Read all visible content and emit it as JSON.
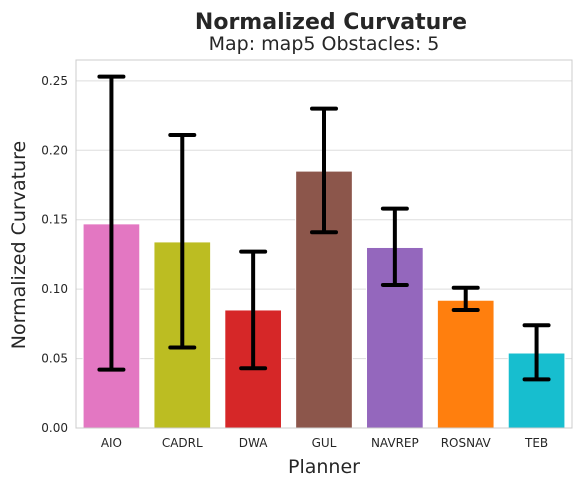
{
  "chart_data": {
    "type": "bar",
    "suptitle": "Normalized Curvature",
    "title": "Map: map5 Obstacles: 5",
    "xlabel": "Planner",
    "ylabel": "Normalized Curvature",
    "ylim": [
      0,
      0.265
    ],
    "yticks": [
      "0.00",
      "0.05",
      "0.10",
      "0.15",
      "0.20",
      "0.25"
    ],
    "grid": true,
    "categories": [
      "AIO",
      "CADRL",
      "DWA",
      "GUL",
      "NAVREP",
      "ROSNAV",
      "TEB"
    ],
    "values": [
      0.147,
      0.134,
      0.085,
      0.185,
      0.13,
      0.092,
      0.054
    ],
    "error_low": [
      0.042,
      0.058,
      0.043,
      0.141,
      0.103,
      0.085,
      0.035
    ],
    "error_high": [
      0.253,
      0.211,
      0.127,
      0.23,
      0.158,
      0.101,
      0.074
    ],
    "colors": [
      "#e377c2",
      "#bcbd22",
      "#d62728",
      "#8c564b",
      "#9467bd",
      "#ff7f0e",
      "#17becf"
    ]
  }
}
